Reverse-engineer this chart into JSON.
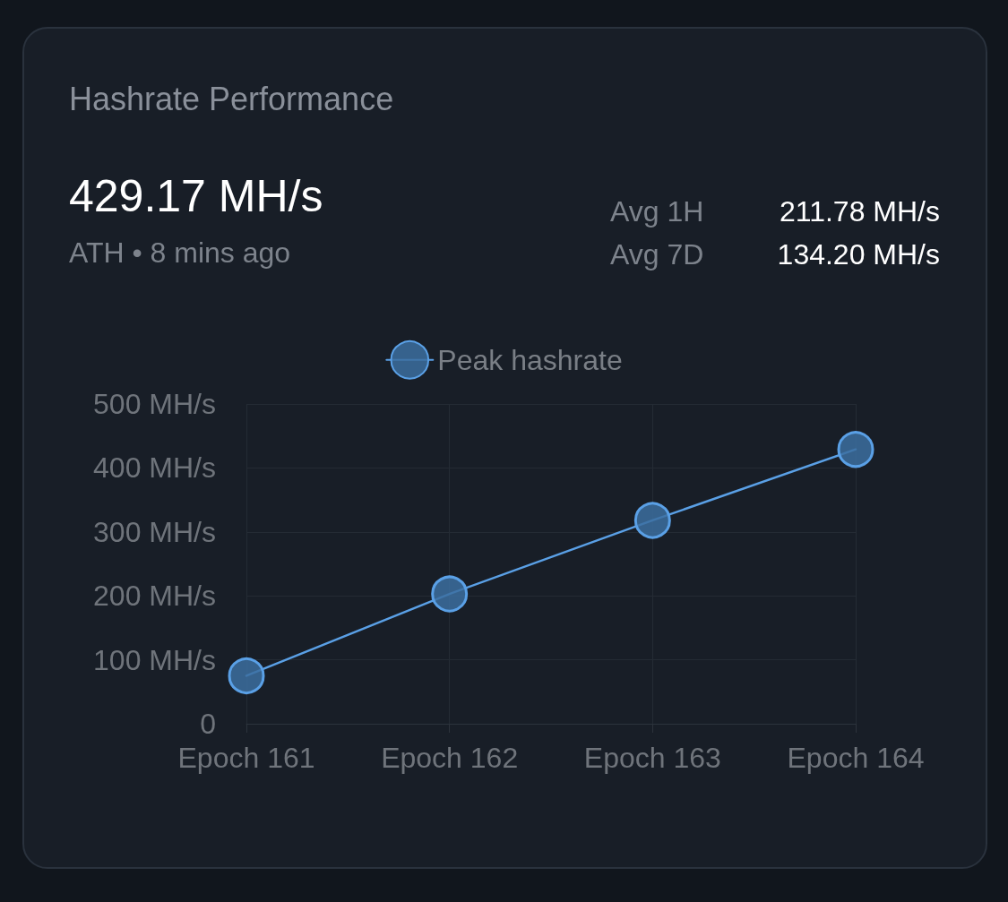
{
  "chart_data": {
    "type": "line",
    "title": "Hashrate Performance",
    "annotations": [
      "429.17 MH/s",
      "ATH • 8 mins ago",
      "Avg 1H",
      "211.78 MH/s",
      "Avg 7D",
      "134.20 MH/s"
    ],
    "categories": [
      "Epoch 161",
      "Epoch 162",
      "Epoch 163",
      "Epoch 164"
    ],
    "series": [
      {
        "name": "Peak hashrate",
        "color": "#5aa0e6",
        "values": [
          75,
          203,
          318,
          429
        ]
      }
    ],
    "ylim": [
      0,
      500
    ],
    "yticks": [
      0,
      {
        "value": 100,
        "label": "100 MH/s"
      },
      {
        "value": 200,
        "label": "200 MH/s"
      },
      {
        "value": 300,
        "label": "300 MH/s"
      },
      {
        "value": 400,
        "label": "400 MH/s"
      },
      {
        "value": 500,
        "label": "500 MH/s"
      }
    ],
    "grid": true,
    "legend": "top",
    "marker": "circle",
    "line_style": "solid"
  }
}
